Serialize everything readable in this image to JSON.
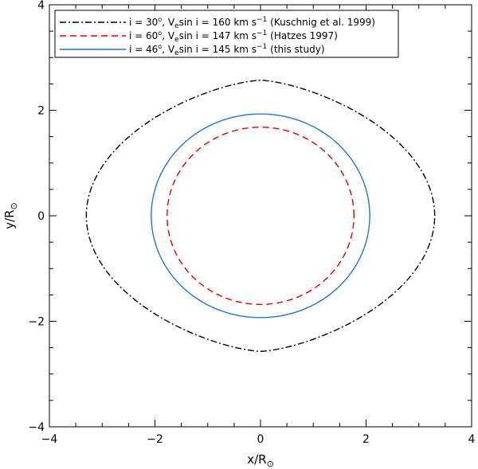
{
  "chart_data": {
    "type": "line",
    "title": "",
    "xlabel": "x/R",
    "ylabel": "y/R",
    "axis_unit_symbol": "⊙",
    "xlim": [
      -4,
      4
    ],
    "ylim": [
      -4,
      4
    ],
    "xticks": [
      -4,
      -2,
      0,
      2,
      4
    ],
    "yticks": [
      -4,
      -2,
      0,
      2,
      4
    ],
    "xtick_labels": [
      "−4",
      "−2",
      "0",
      "2",
      "4"
    ],
    "ytick_labels": [
      "−4",
      "−2",
      "0",
      "2",
      "4"
    ],
    "grid": false,
    "legend_position": "top-left",
    "series": [
      {
        "id": "s30",
        "color": "#000000",
        "dash": "dash-dot",
        "shape": "oblate-lemon",
        "semi_axis_x": 3.3,
        "semi_axis_y": 2.57,
        "legend": {
          "i_label": "i = 30",
          "mid": ", V",
          "sub": "e",
          "vsini": "sin i = 160 km s",
          "sup": "−1",
          "ref": " (Kuschnig et al. 1999)"
        }
      },
      {
        "id": "s60",
        "color": "#e00000",
        "dash": "dashed",
        "shape": "ellipse",
        "semi_axis_x": 1.77,
        "semi_axis_y": 1.68,
        "legend": {
          "i_label": "i = 60",
          "mid": ", V",
          "sub": "e",
          "vsini": "sin i = 147 km s",
          "sup": "−1",
          "ref": " (Hatzes 1997)"
        }
      },
      {
        "id": "s46",
        "color": "#1f77d4",
        "dash": "solid",
        "shape": "ellipse",
        "semi_axis_x": 2.07,
        "semi_axis_y": 1.93,
        "legend": {
          "i_label": "i = 46",
          "mid": ", V",
          "sub": "e",
          "vsini": "sin i = 145 km s",
          "sup": "−1",
          "ref": " (this study)"
        }
      }
    ]
  }
}
